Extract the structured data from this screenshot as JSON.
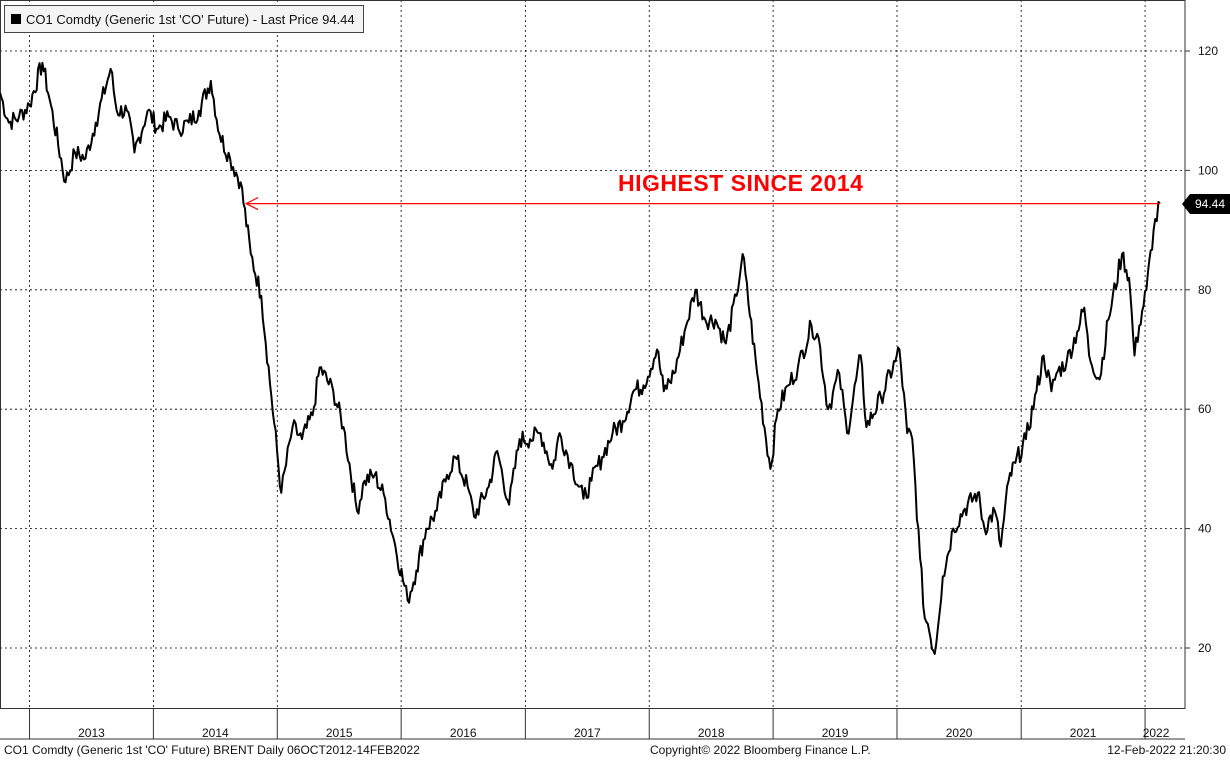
{
  "legend": {
    "label": "CO1 Comdty (Generic 1st 'CO' Future) - Last Price 94.44",
    "swatch_color": "#000000"
  },
  "annotation": {
    "text": "HIGHEST SINCE 2014",
    "color": "#ff0000"
  },
  "last_price_tag": "94.44",
  "footer": {
    "left": "CO1 Comdty (Generic 1st 'CO' Future) BRENT  Daily 06OCT2012-14FEB2022",
    "center": "Copyright© 2022 Bloomberg Finance L.P.",
    "right": "12-Feb-2022 21:20:30"
  },
  "chart_data": {
    "type": "line",
    "title": "",
    "xlabel": "",
    "ylabel": "",
    "x_range": [
      "2012-10-06",
      "2022-02-14"
    ],
    "ylim": [
      10,
      130
    ],
    "y_ticks": [
      20,
      40,
      60,
      80,
      100,
      120
    ],
    "x_tick_labels": [
      "2013",
      "2014",
      "2015",
      "2016",
      "2017",
      "2018",
      "2019",
      "2020",
      "2021",
      "2022"
    ],
    "grid": true,
    "legend_position": "top-left",
    "series": [
      {
        "name": "CO1 Comdty (Generic 1st 'CO' Future) - Last Price",
        "color": "#000000",
        "points": [
          [
            "2012-10-06",
            113
          ],
          [
            "2012-11-01",
            108
          ],
          [
            "2012-12-01",
            109
          ],
          [
            "2013-01-01",
            111
          ],
          [
            "2013-02-08",
            118
          ],
          [
            "2013-03-01",
            112
          ],
          [
            "2013-04-17",
            98
          ],
          [
            "2013-05-15",
            103
          ],
          [
            "2013-06-15",
            102
          ],
          [
            "2013-07-15",
            108
          ],
          [
            "2013-08-28",
            117
          ],
          [
            "2013-09-15",
            110
          ],
          [
            "2013-10-15",
            110
          ],
          [
            "2013-11-06",
            103
          ],
          [
            "2013-12-15",
            110
          ],
          [
            "2014-01-15",
            107
          ],
          [
            "2014-02-15",
            109
          ],
          [
            "2014-03-15",
            107
          ],
          [
            "2014-04-15",
            108
          ],
          [
            "2014-05-15",
            110
          ],
          [
            "2014-06-19",
            115
          ],
          [
            "2014-07-15",
            106
          ],
          [
            "2014-08-15",
            102
          ],
          [
            "2014-09-15",
            98
          ],
          [
            "2014-10-15",
            86
          ],
          [
            "2014-11-15",
            79
          ],
          [
            "2014-12-15",
            62
          ],
          [
            "2015-01-13",
            46
          ],
          [
            "2015-02-15",
            57
          ],
          [
            "2015-03-15",
            55
          ],
          [
            "2015-04-15",
            59
          ],
          [
            "2015-05-06",
            67
          ],
          [
            "2015-06-15",
            63
          ],
          [
            "2015-07-15",
            57
          ],
          [
            "2015-08-24",
            43
          ],
          [
            "2015-09-15",
            48
          ],
          [
            "2015-10-15",
            49
          ],
          [
            "2015-11-15",
            45
          ],
          [
            "2015-12-15",
            37
          ],
          [
            "2016-01-20",
            28
          ],
          [
            "2016-02-15",
            33
          ],
          [
            "2016-03-15",
            40
          ],
          [
            "2016-04-15",
            43
          ],
          [
            "2016-05-15",
            49
          ],
          [
            "2016-06-08",
            52
          ],
          [
            "2016-07-15",
            47
          ],
          [
            "2016-08-03",
            42
          ],
          [
            "2016-09-15",
            47
          ],
          [
            "2016-10-10",
            53
          ],
          [
            "2016-11-14",
            44
          ],
          [
            "2016-12-15",
            55
          ],
          [
            "2017-01-15",
            55
          ],
          [
            "2017-02-15",
            56
          ],
          [
            "2017-03-22",
            50
          ],
          [
            "2017-04-12",
            56
          ],
          [
            "2017-05-15",
            51
          ],
          [
            "2017-06-21",
            45
          ],
          [
            "2017-07-15",
            48
          ],
          [
            "2017-08-15",
            52
          ],
          [
            "2017-09-15",
            56
          ],
          [
            "2017-10-15",
            58
          ],
          [
            "2017-11-15",
            63
          ],
          [
            "2017-12-15",
            64
          ],
          [
            "2018-01-24",
            70
          ],
          [
            "2018-02-13",
            63
          ],
          [
            "2018-03-15",
            66
          ],
          [
            "2018-04-15",
            73
          ],
          [
            "2018-05-17",
            80
          ],
          [
            "2018-06-15",
            75
          ],
          [
            "2018-07-15",
            75
          ],
          [
            "2018-08-15",
            71
          ],
          [
            "2018-09-15",
            79
          ],
          [
            "2018-10-03",
            86
          ],
          [
            "2018-11-15",
            66
          ],
          [
            "2018-12-24",
            50
          ],
          [
            "2019-01-15",
            60
          ],
          [
            "2019-02-15",
            64
          ],
          [
            "2019-03-15",
            67
          ],
          [
            "2019-04-24",
            74
          ],
          [
            "2019-05-15",
            72
          ],
          [
            "2019-06-12",
            60
          ],
          [
            "2019-07-15",
            66
          ],
          [
            "2019-08-07",
            56
          ],
          [
            "2019-09-16",
            69
          ],
          [
            "2019-10-03",
            57
          ],
          [
            "2019-11-15",
            62
          ],
          [
            "2019-12-27",
            68
          ],
          [
            "2020-01-08",
            70
          ],
          [
            "2020-01-31",
            56
          ],
          [
            "2020-02-15",
            55
          ],
          [
            "2020-03-09",
            35
          ],
          [
            "2020-03-23",
            25
          ],
          [
            "2020-04-01",
            24
          ],
          [
            "2020-04-21",
            19
          ],
          [
            "2020-05-15",
            32
          ],
          [
            "2020-06-15",
            40
          ],
          [
            "2020-07-15",
            43
          ],
          [
            "2020-08-26",
            46
          ],
          [
            "2020-09-15",
            40
          ],
          [
            "2020-10-15",
            43
          ],
          [
            "2020-11-02",
            37
          ],
          [
            "2020-11-25",
            48
          ],
          [
            "2020-12-15",
            51
          ],
          [
            "2021-01-15",
            55
          ],
          [
            "2021-02-15",
            63
          ],
          [
            "2021-03-08",
            69
          ],
          [
            "2021-03-31",
            63
          ],
          [
            "2021-04-15",
            66
          ],
          [
            "2021-05-15",
            68
          ],
          [
            "2021-06-15",
            73
          ],
          [
            "2021-07-06",
            77
          ],
          [
            "2021-07-20",
            69
          ],
          [
            "2021-08-20",
            65
          ],
          [
            "2021-09-15",
            75
          ],
          [
            "2021-10-25",
            86
          ],
          [
            "2021-11-15",
            82
          ],
          [
            "2021-12-01",
            69
          ],
          [
            "2021-12-15",
            74
          ],
          [
            "2022-01-05",
            80
          ],
          [
            "2022-01-26",
            90
          ],
          [
            "2022-02-14",
            94.44
          ]
        ]
      },
      {
        "name": "",
        "role": "reference-arrow",
        "color": "#ff0000",
        "points": [
          [
            "2014-10-01",
            94.44
          ],
          [
            "2022-02-14",
            94.44
          ]
        ]
      }
    ]
  }
}
